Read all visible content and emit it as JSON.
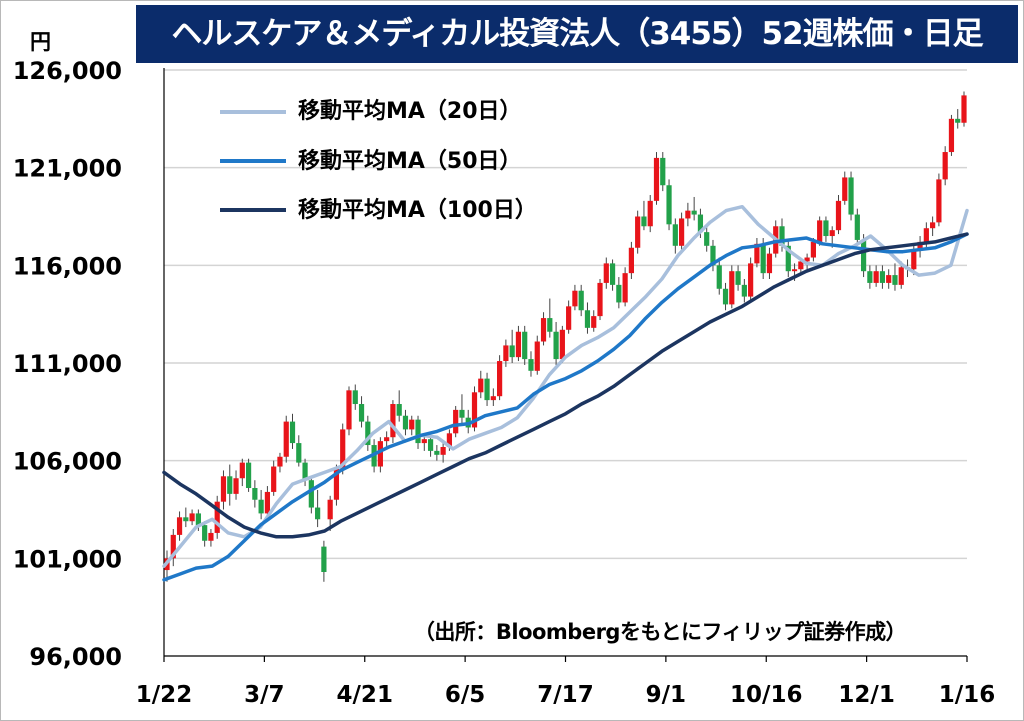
{
  "title": "ヘルスケア＆メディカル投資法人（3455）52週株価・日足",
  "unit": "円",
  "source": "（出所：Bloombergをもとにフィリップ証券作成）",
  "colors": {
    "title_bg": "#0b2c6b",
    "up": "#e8141a",
    "down": "#22a14a",
    "grid": "#d4d4d4",
    "ma20": "#a8bfdc",
    "ma50": "#1f78c8",
    "ma100": "#1c3560"
  },
  "legend": [
    {
      "label": "移動平均MA（20日）",
      "color": "#a8bfdc"
    },
    {
      "label": "移動平均MA（50日）",
      "color": "#1f78c8"
    },
    {
      "label": "移動平均MA（100日）",
      "color": "#1c3560"
    }
  ],
  "chart_data": {
    "type": "line",
    "y_tick_labels": [
      "96,000",
      "101,000",
      "106,000",
      "111,000",
      "116,000",
      "121,000",
      "126,000"
    ],
    "x_tick_labels": [
      "1/22",
      "3/7",
      "4/21",
      "6/5",
      "7/17",
      "9/1",
      "10/16",
      "12/1",
      "1/16"
    ],
    "ylim": [
      96000,
      126000
    ],
    "grid": true,
    "legend_position": "top-left",
    "series": [
      {
        "name": "移動平均MA（20日）",
        "values": [
          100600,
          101600,
          102600,
          103000,
          102300,
          102100,
          102600,
          103800,
          104800,
          105100,
          105400,
          105700,
          106500,
          107400,
          108000,
          107000,
          107300,
          107200,
          106600,
          107100,
          107400,
          107700,
          108200,
          109200,
          110400,
          111300,
          111900,
          112300,
          112800,
          113600,
          114400,
          115300,
          116500,
          117400,
          118200,
          118800,
          119000,
          118100,
          117400,
          116700,
          116100,
          116000,
          116600,
          117000,
          117500,
          116800,
          116000,
          115500,
          115600,
          116000,
          118800
        ]
      },
      {
        "name": "移動平均MA（50日）",
        "values": [
          99900,
          100200,
          100500,
          100600,
          101100,
          101900,
          102700,
          103300,
          103900,
          104400,
          104900,
          105500,
          105900,
          106300,
          106700,
          107000,
          107300,
          107500,
          107800,
          107900,
          108300,
          108500,
          108700,
          109400,
          109900,
          110200,
          110600,
          111100,
          111700,
          112400,
          113300,
          114100,
          114800,
          115400,
          116000,
          116500,
          116900,
          117000,
          117200,
          117300,
          117400,
          117100,
          117000,
          116900,
          116800,
          116700,
          116700,
          116800,
          116900,
          117200,
          117600
        ]
      },
      {
        "name": "移動平均MA（100日）",
        "values": [
          105400,
          104800,
          104300,
          103700,
          103100,
          102600,
          102300,
          102100,
          102100,
          102200,
          102400,
          102900,
          103300,
          103700,
          104100,
          104500,
          104900,
          105300,
          105700,
          106100,
          106400,
          106800,
          107200,
          107600,
          108000,
          108400,
          108900,
          109300,
          109800,
          110400,
          111000,
          111600,
          112100,
          112600,
          113100,
          113500,
          113900,
          114400,
          114900,
          115300,
          115700,
          116000,
          116300,
          116600,
          116800,
          116900,
          117000,
          117100,
          117200,
          117400,
          117600
        ]
      }
    ],
    "candles_ohlc": [
      [
        100400,
        101400,
        99800,
        101000
      ],
      [
        101000,
        102500,
        100600,
        102200
      ],
      [
        102200,
        103400,
        101900,
        103100
      ],
      [
        103100,
        103600,
        102600,
        102900
      ],
      [
        102900,
        103500,
        102700,
        103300
      ],
      [
        103300,
        103500,
        102400,
        102700
      ],
      [
        102700,
        102900,
        101600,
        101900
      ],
      [
        101900,
        102500,
        101600,
        102300
      ],
      [
        102300,
        104200,
        102000,
        103900
      ],
      [
        103900,
        105500,
        103500,
        105200
      ],
      [
        105200,
        105800,
        103700,
        104300
      ],
      [
        104300,
        105500,
        104000,
        105100
      ],
      [
        105100,
        106100,
        104700,
        105900
      ],
      [
        105900,
        106100,
        104400,
        104600
      ],
      [
        104600,
        105000,
        103600,
        104000
      ],
      [
        104000,
        104500,
        103000,
        103300
      ],
      [
        103300,
        104700,
        103100,
        104400
      ],
      [
        104400,
        106000,
        104200,
        105700
      ],
      [
        105700,
        106400,
        105400,
        106200
      ],
      [
        106200,
        108300,
        105900,
        108000
      ],
      [
        108000,
        108400,
        106600,
        106900
      ],
      [
        106900,
        107300,
        105700,
        105900
      ],
      [
        105900,
        106100,
        104700,
        105000
      ],
      [
        105000,
        105200,
        103300,
        103600
      ],
      [
        103600,
        104500,
        102600,
        103000
      ],
      [
        101600,
        101900,
        99800,
        100300
      ],
      [
        103000,
        104200,
        102400,
        104000
      ],
      [
        104000,
        105800,
        103700,
        105600
      ],
      [
        105600,
        107900,
        105300,
        107600
      ],
      [
        107600,
        109800,
        107300,
        109600
      ],
      [
        109600,
        109900,
        108600,
        108900
      ],
      [
        108900,
        109300,
        107700,
        108000
      ],
      [
        108000,
        108300,
        106500,
        106800
      ],
      [
        106800,
        107100,
        105400,
        105700
      ],
      [
        105700,
        107200,
        105400,
        107000
      ],
      [
        107000,
        107500,
        106600,
        107200
      ],
      [
        107200,
        109100,
        106900,
        108900
      ],
      [
        108900,
        109600,
        108000,
        108300
      ],
      [
        108300,
        108600,
        107300,
        107600
      ],
      [
        107600,
        108300,
        107300,
        108100
      ],
      [
        108100,
        108300,
        106600,
        106900
      ],
      [
        106900,
        107300,
        106500,
        107100
      ],
      [
        107100,
        107300,
        106200,
        106500
      ],
      [
        106500,
        106800,
        106000,
        106300
      ],
      [
        106300,
        106900,
        105900,
        106700
      ],
      [
        106700,
        107600,
        106500,
        107400
      ],
      [
        107400,
        108800,
        107200,
        108600
      ],
      [
        108600,
        109400,
        107900,
        108200
      ],
      [
        108200,
        108600,
        107400,
        107700
      ],
      [
        107700,
        109800,
        107500,
        109500
      ],
      [
        109500,
        110600,
        109200,
        110200
      ],
      [
        110200,
        110500,
        108800,
        109100
      ],
      [
        109100,
        109700,
        108800,
        109300
      ],
      [
        109300,
        111400,
        109100,
        111100
      ],
      [
        111100,
        112200,
        110800,
        111900
      ],
      [
        111900,
        112700,
        111000,
        111300
      ],
      [
        111300,
        112900,
        111100,
        112600
      ],
      [
        112600,
        112900,
        110900,
        111200
      ],
      [
        111200,
        111600,
        110300,
        110600
      ],
      [
        110600,
        112400,
        110400,
        112100
      ],
      [
        112100,
        113600,
        111900,
        113300
      ],
      [
        113300,
        114300,
        112300,
        112600
      ],
      [
        112600,
        113100,
        110900,
        111200
      ],
      [
        111200,
        112900,
        111000,
        112700
      ],
      [
        112700,
        114200,
        112500,
        113900
      ],
      [
        113900,
        115000,
        113700,
        114700
      ],
      [
        114700,
        115000,
        113400,
        113700
      ],
      [
        113700,
        114100,
        112500,
        112800
      ],
      [
        112800,
        113700,
        112600,
        113400
      ],
      [
        113400,
        115300,
        113200,
        115100
      ],
      [
        115100,
        116400,
        114800,
        116100
      ],
      [
        116100,
        116300,
        114700,
        115000
      ],
      [
        115000,
        115400,
        113800,
        114100
      ],
      [
        114100,
        115900,
        113900,
        115600
      ],
      [
        115600,
        117200,
        115300,
        116900
      ],
      [
        116900,
        118800,
        116600,
        118500
      ],
      [
        118500,
        119300,
        117800,
        118000
      ],
      [
        118000,
        119600,
        117700,
        119300
      ],
      [
        119300,
        121800,
        119100,
        121500
      ],
      [
        121500,
        121800,
        119800,
        120100
      ],
      [
        120100,
        120400,
        117800,
        118100
      ],
      [
        118100,
        118400,
        116600,
        117000
      ],
      [
        117000,
        118700,
        116800,
        118400
      ],
      [
        118400,
        119200,
        118000,
        118800
      ],
      [
        118800,
        119500,
        118300,
        118600
      ],
      [
        118600,
        118900,
        117400,
        117700
      ],
      [
        117700,
        118000,
        116700,
        117000
      ],
      [
        117000,
        117300,
        115700,
        116000
      ],
      [
        116000,
        116400,
        114500,
        114800
      ],
      [
        114800,
        115100,
        113700,
        114000
      ],
      [
        114000,
        116000,
        113800,
        115700
      ],
      [
        115700,
        116000,
        114700,
        115000
      ],
      [
        115000,
        115300,
        114100,
        114400
      ],
      [
        114400,
        116400,
        114200,
        116100
      ],
      [
        116100,
        117400,
        115900,
        117100
      ],
      [
        117100,
        117400,
        115300,
        115600
      ],
      [
        115600,
        116900,
        115300,
        116600
      ],
      [
        116600,
        118300,
        116400,
        118000
      ],
      [
        118000,
        118400,
        116700,
        117000
      ],
      [
        117000,
        117300,
        115400,
        115700
      ],
      [
        115700,
        116100,
        115200,
        115800
      ],
      [
        115800,
        116400,
        115500,
        116200
      ],
      [
        116200,
        116600,
        115800,
        116400
      ],
      [
        116400,
        117400,
        116200,
        117200
      ],
      [
        117200,
        118500,
        117000,
        118300
      ],
      [
        118300,
        118500,
        117200,
        117500
      ],
      [
        117500,
        118000,
        116900,
        117800
      ],
      [
        117800,
        119600,
        117600,
        119300
      ],
      [
        119300,
        120800,
        119100,
        120500
      ],
      [
        120500,
        120800,
        118300,
        118600
      ],
      [
        118600,
        118900,
        117000,
        117300
      ],
      [
        117300,
        117600,
        115400,
        115700
      ],
      [
        115700,
        116000,
        114800,
        115100
      ],
      [
        115100,
        116000,
        114900,
        115700
      ],
      [
        115700,
        116000,
        114800,
        115100
      ],
      [
        115100,
        115800,
        114800,
        115500
      ],
      [
        115500,
        116100,
        114700,
        115000
      ],
      [
        115000,
        116200,
        114800,
        115900
      ],
      [
        115900,
        116300,
        115400,
        115800
      ],
      [
        115800,
        117000,
        115500,
        116800
      ],
      [
        116800,
        117500,
        116400,
        117200
      ],
      [
        117200,
        118200,
        116800,
        117900
      ],
      [
        117900,
        118500,
        117500,
        118200
      ],
      [
        118200,
        120700,
        118000,
        120400
      ],
      [
        120400,
        122100,
        120100,
        121800
      ],
      [
        121800,
        123700,
        121600,
        123500
      ],
      [
        123500,
        124000,
        123000,
        123300
      ],
      [
        123300,
        124900,
        123100,
        124700
      ]
    ]
  }
}
